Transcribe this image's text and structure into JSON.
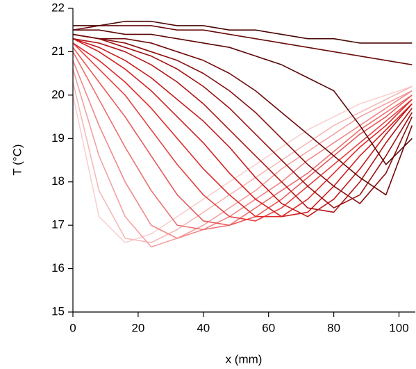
{
  "chart_data": {
    "type": "line",
    "x_label": "x (mm)",
    "y_label": "T (°C)",
    "x": [
      0,
      8,
      16,
      24,
      32,
      40,
      48,
      56,
      64,
      72,
      80,
      88,
      96,
      104
    ],
    "xlim": [
      0,
      105
    ],
    "ylim": [
      15,
      22
    ],
    "xticks": [
      0,
      20,
      40,
      60,
      80,
      100
    ],
    "yticks": [
      15,
      16,
      17,
      18,
      19,
      20,
      21,
      22
    ],
    "series": [
      {
        "color": "#f9d0d0",
        "values": [
          20.0,
          17.2,
          16.6,
          16.8,
          17.2,
          17.6,
          18.0,
          18.4,
          18.8,
          19.2,
          19.5,
          19.8,
          20.0,
          20.2
        ]
      },
      {
        "color": "#f6b8b8",
        "values": [
          20.3,
          17.8,
          16.7,
          16.6,
          16.9,
          17.3,
          17.7,
          18.1,
          18.5,
          18.9,
          19.3,
          19.6,
          19.9,
          20.2
        ]
      },
      {
        "color": "#f4a0a0",
        "values": [
          20.6,
          18.6,
          17.2,
          16.5,
          16.7,
          17.0,
          17.4,
          17.8,
          18.3,
          18.7,
          19.1,
          19.5,
          19.8,
          20.1
        ]
      },
      {
        "color": "#f08888",
        "values": [
          20.8,
          19.3,
          18.0,
          17.0,
          16.7,
          16.9,
          17.2,
          17.6,
          18.0,
          18.5,
          18.9,
          19.3,
          19.7,
          20.1
        ]
      },
      {
        "color": "#ec7070",
        "values": [
          21.0,
          19.9,
          18.8,
          17.8,
          17.0,
          16.9,
          17.0,
          17.4,
          17.8,
          18.2,
          18.7,
          19.2,
          19.6,
          20.0
        ]
      },
      {
        "color": "#e85858",
        "values": [
          21.1,
          20.3,
          19.5,
          18.6,
          17.7,
          17.1,
          17.0,
          17.2,
          17.6,
          18.1,
          18.6,
          19.1,
          19.5,
          20.0
        ]
      },
      {
        "color": "#e44040",
        "values": [
          21.2,
          20.6,
          20.0,
          19.2,
          18.4,
          17.7,
          17.2,
          17.1,
          17.4,
          17.9,
          18.4,
          18.9,
          19.4,
          19.9
        ]
      },
      {
        "color": "#e02828",
        "values": [
          21.2,
          20.8,
          20.3,
          19.7,
          19.0,
          18.3,
          17.7,
          17.2,
          17.2,
          17.6,
          18.2,
          18.8,
          19.3,
          19.9
        ]
      },
      {
        "color": "#d41e1e",
        "values": [
          21.3,
          21.0,
          20.6,
          20.1,
          19.5,
          18.9,
          18.2,
          17.6,
          17.2,
          17.3,
          17.9,
          18.6,
          19.2,
          19.8
        ]
      },
      {
        "color": "#c41a1a",
        "values": [
          21.3,
          21.1,
          20.8,
          20.4,
          19.9,
          19.4,
          18.8,
          18.1,
          17.5,
          17.2,
          17.6,
          18.3,
          19.1,
          19.8
        ]
      },
      {
        "color": "#b01616",
        "values": [
          21.3,
          21.2,
          21.0,
          20.7,
          20.3,
          19.8,
          19.2,
          18.6,
          18.0,
          17.4,
          17.3,
          18.0,
          18.9,
          19.7
        ]
      },
      {
        "color": "#9c1212",
        "values": [
          21.4,
          21.3,
          21.1,
          20.9,
          20.6,
          20.2,
          19.7,
          19.1,
          18.5,
          17.9,
          17.4,
          17.7,
          18.6,
          19.6
        ]
      },
      {
        "color": "#880f0f",
        "values": [
          21.4,
          21.3,
          21.2,
          21.0,
          20.8,
          20.5,
          20.1,
          19.6,
          19.0,
          18.4,
          17.9,
          17.5,
          18.2,
          19.5
        ]
      },
      {
        "color": "#700b0b",
        "values": [
          21.4,
          21.3,
          21.3,
          21.2,
          21.0,
          20.8,
          20.5,
          20.1,
          19.6,
          19.1,
          18.6,
          18.1,
          17.7,
          19.3
        ]
      },
      {
        "color": "#5c0808",
        "values": [
          21.5,
          21.5,
          21.4,
          21.4,
          21.3,
          21.2,
          21.1,
          20.9,
          20.7,
          20.4,
          20.1,
          19.3,
          18.4,
          19.0
        ]
      },
      {
        "color": "#6a0a0a",
        "values": [
          21.5,
          21.6,
          21.6,
          21.6,
          21.5,
          21.5,
          21.4,
          21.3,
          21.2,
          21.1,
          21.0,
          20.9,
          20.8,
          20.7
        ]
      },
      {
        "color": "#4a0505",
        "values": [
          21.6,
          21.6,
          21.7,
          21.7,
          21.6,
          21.6,
          21.5,
          21.5,
          21.4,
          21.3,
          21.3,
          21.2,
          21.2,
          21.2
        ]
      }
    ]
  }
}
